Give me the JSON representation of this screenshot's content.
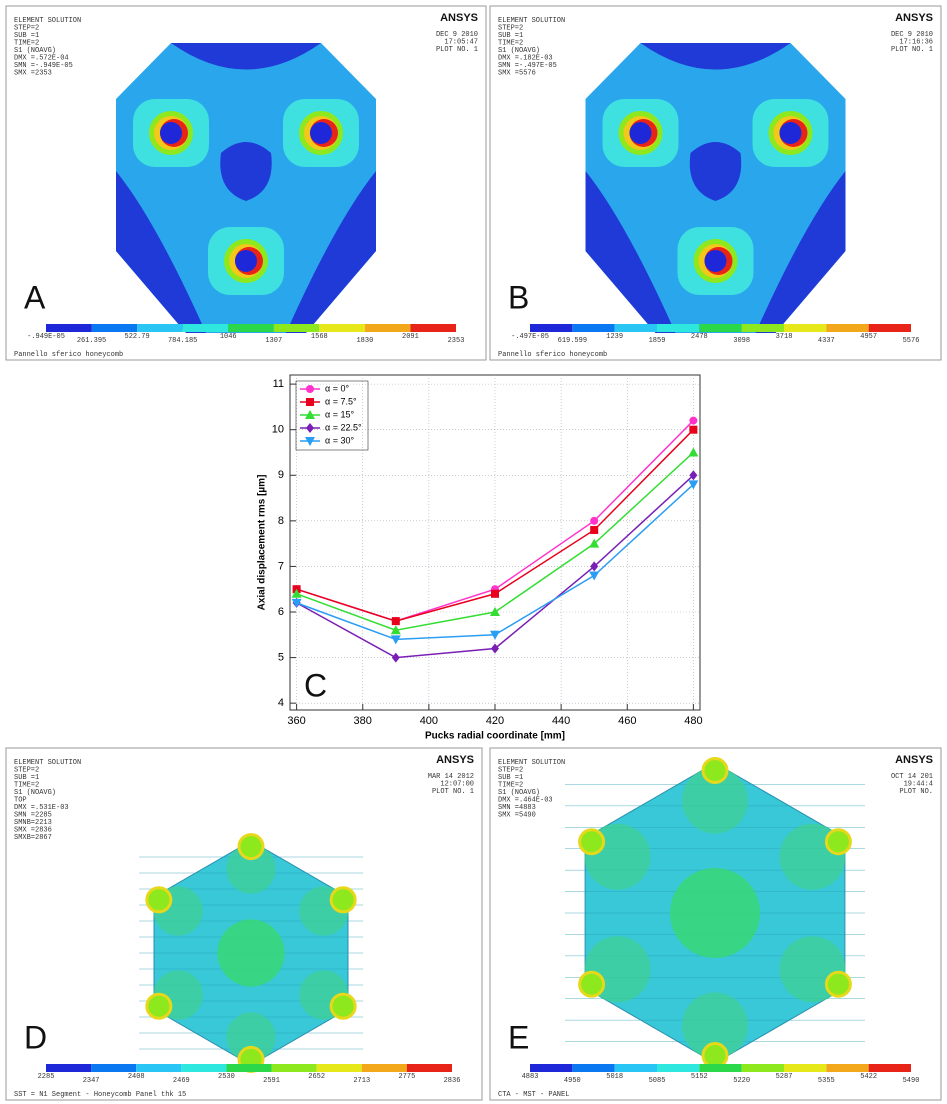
{
  "panels": [
    {
      "label": "A",
      "logo": "ANSYS",
      "lines": [
        "ELEMENT SOLUTION",
        "STEP=2",
        "SUB =1",
        "TIME=2",
        "S1       (NOAVG)",
        "DMX =.572E-04",
        "SMN =-.949E-05",
        "SMX =2353"
      ],
      "date": [
        "DEC  9 2010",
        "17:05:47",
        "PLOT NO.   1"
      ],
      "colorbar": [
        "-.949E-05",
        "261.395",
        "522.79",
        "784.185",
        "1046",
        "1307",
        "1568",
        "1830",
        "2091",
        "2353"
      ],
      "footer": "Pannello sferico honeycomb"
    },
    {
      "label": "B",
      "logo": "ANSYS",
      "lines": [
        "ELEMENT SOLUTION",
        "STEP=2",
        "SUB =1",
        "TIME=2",
        "S1       (NOAVG)",
        "DMX =.182E-03",
        "SMN =-.497E-05",
        "SMX =5576"
      ],
      "date": [
        "DEC  9 2010",
        "17:16:36",
        "PLOT NO.   1"
      ],
      "colorbar": [
        "-.497E-05",
        "619.599",
        "1239",
        "1859",
        "2478",
        "3098",
        "3718",
        "4337",
        "4957",
        "5576"
      ],
      "footer": "Pannello sferico honeycomb"
    },
    {
      "label": "D",
      "logo": "ANSYS",
      "lines": [
        "ELEMENT SOLUTION",
        "STEP=2",
        "SUB =1",
        "TIME=2",
        "S1       (NOAVG)",
        "TOP",
        "DMX =.531E-03",
        "SMN =2285",
        "SMNB=2213",
        "SMX =2836",
        "SMXB=2867"
      ],
      "date": [
        "MAR 14 2012",
        "12:07:00",
        "PLOT NO.   1"
      ],
      "colorbar": [
        "2285",
        "2347",
        "2408",
        "2469",
        "2530",
        "2591",
        "2652",
        "2713",
        "2775",
        "2836"
      ],
      "footer": "SST = N1 Segment - Honeycomb Panel thk 15"
    },
    {
      "label": "E",
      "logo": "ANSYS",
      "lines": [
        "ELEMENT SOLUTION",
        "STEP=2",
        "SUB =1",
        "TIME=2",
        "S1       (NOAVG)",
        "DMX =.464E-03",
        "SMN =4883",
        "SMX =5490"
      ],
      "date": [
        "OCT 14 201",
        "19:44:4",
        "PLOT NO."
      ],
      "colorbar": [
        "4883",
        "4950",
        "5018",
        "5085",
        "5152",
        "5220",
        "5287",
        "5355",
        "5422",
        "5490"
      ],
      "footer": "CTA - MST - PANEL"
    }
  ],
  "chart_data": {
    "type": "line",
    "label": "C",
    "x_label": "Pucks radial coordinate [mm]",
    "y_label": "Axial displacement rms [µm]",
    "x": [
      360,
      390,
      420,
      450,
      480
    ],
    "series": [
      {
        "name": "α = 0°",
        "color": "#ff33cc",
        "marker": "circle",
        "values": [
          6.5,
          5.8,
          6.5,
          8.0,
          10.2
        ]
      },
      {
        "name": "α = 7.5°",
        "color": "#e8001c",
        "marker": "square",
        "values": [
          6.5,
          5.8,
          6.4,
          7.8,
          10.0
        ]
      },
      {
        "name": "α = 15°",
        "color": "#33dd33",
        "marker": "triangle-up",
        "values": [
          6.4,
          5.6,
          6.0,
          7.5,
          9.5
        ]
      },
      {
        "name": "α = 22.5°",
        "color": "#7a1fb5",
        "marker": "diamond",
        "values": [
          6.2,
          5.0,
          5.2,
          7.0,
          9.0
        ]
      },
      {
        "name": "α = 30°",
        "color": "#2a9df4",
        "marker": "triangle-down",
        "values": [
          6.2,
          5.4,
          5.5,
          6.8,
          8.8
        ]
      }
    ],
    "xlim": [
      358,
      482
    ],
    "ylim": [
      3.85,
      11.2
    ],
    "xticks": [
      360,
      380,
      400,
      420,
      440,
      460,
      480
    ],
    "yticks": [
      4,
      5,
      6,
      7,
      8,
      9,
      10,
      11
    ],
    "grid": true,
    "legend": "upper-left"
  }
}
